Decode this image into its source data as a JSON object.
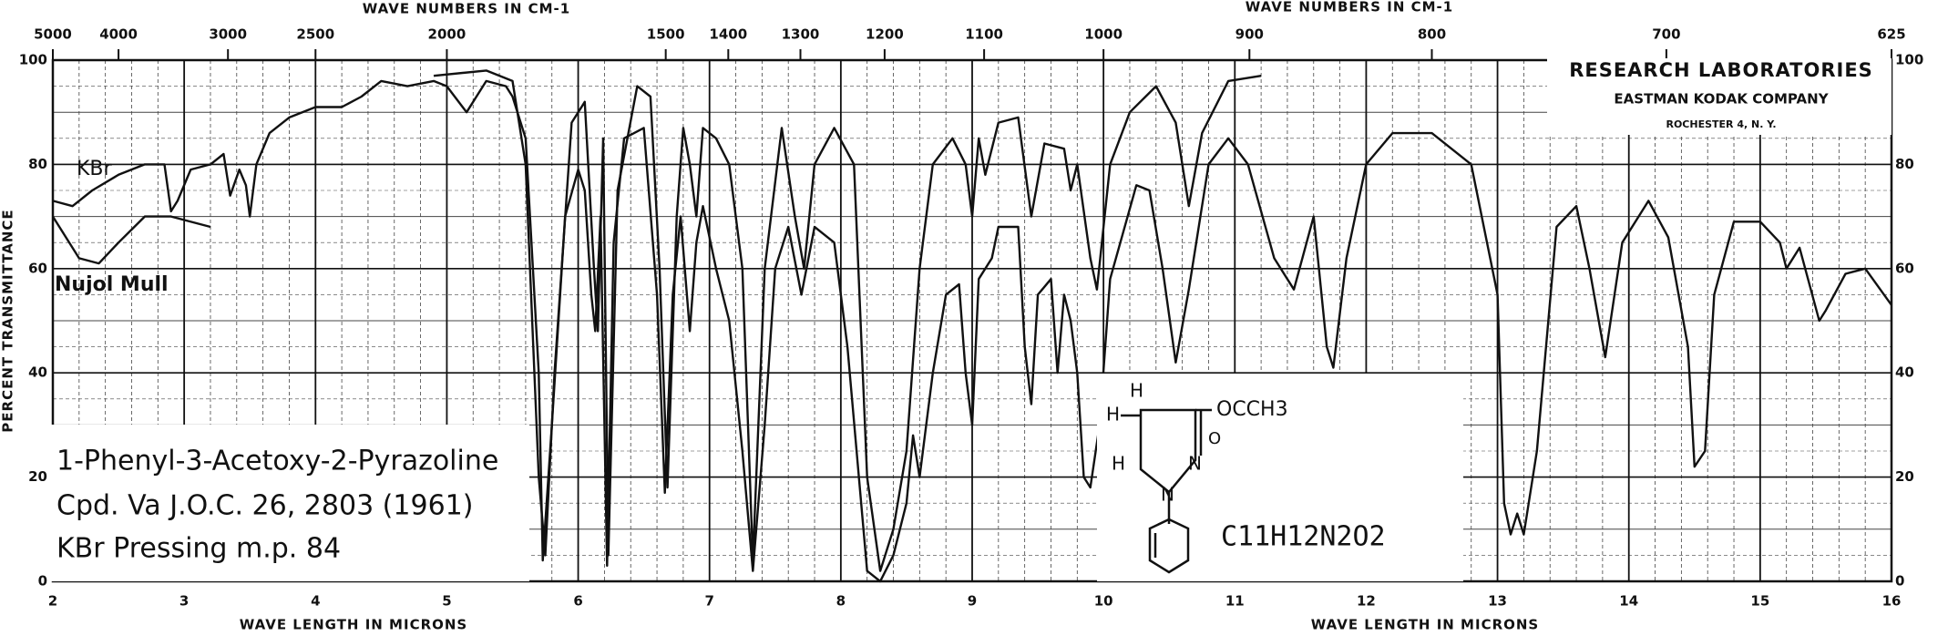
{
  "chart_data": {
    "type": "line",
    "top_axis_label": "WAVE NUMBERS IN CM-1",
    "bottom_axis_label": "WAVE LENGTH IN MICRONS",
    "ylabel": "PERCENT TRANSMITTANCE",
    "xlim": [
      2,
      16
    ],
    "xticks": [
      2,
      3,
      4,
      5,
      6,
      7,
      8,
      9,
      10,
      11,
      12,
      13,
      14,
      15,
      16
    ],
    "x2ticks": [
      5000,
      4000,
      3000,
      2500,
      2000,
      1500,
      1400,
      1300,
      1200,
      1100,
      1000,
      900,
      800,
      700,
      625
    ],
    "x2scale": "reciprocal",
    "ylim": [
      0,
      100
    ],
    "yticks": [
      0,
      20,
      40,
      60,
      80,
      100
    ],
    "grid": true,
    "lab": [
      "RESEARCH LABORATORIES",
      "EASTMAN KODAK COMPANY",
      "ROCHESTER 4, N. Y."
    ],
    "notes": [
      "1-Phenyl-3-Acetoxy-2-Pyrazoline",
      "Cpd. Va J.O.C. 26, 2803 (1961)",
      "KBr Pressing   m.p. 84"
    ],
    "formula": "C11H12N2O2",
    "structure_labels": [
      "H",
      "H",
      "H",
      "N",
      "N",
      "OCCH3",
      "O"
    ],
    "series": [
      {
        "name": "KBr",
        "color": "#111111",
        "x": [
          2.0,
          2.15,
          2.3,
          2.5,
          2.7,
          2.85,
          2.9,
          2.95,
          3.05,
          3.2,
          3.3,
          3.35,
          3.42,
          3.47,
          3.5,
          3.55,
          3.65,
          3.8,
          4.0,
          4.2,
          4.35,
          4.5,
          4.7,
          4.9,
          5.0,
          5.15,
          5.3,
          5.45,
          5.5,
          5.6,
          5.7,
          5.73,
          5.8,
          5.9,
          6.0,
          6.05,
          6.1,
          6.13,
          6.17,
          6.22,
          6.27,
          6.35,
          6.5,
          6.6,
          6.66,
          6.72,
          6.78,
          6.85,
          6.9,
          6.95,
          7.05,
          7.15,
          7.25,
          7.33,
          7.42,
          7.5,
          7.6,
          7.7,
          7.8,
          7.95,
          8.05,
          8.2,
          8.3,
          8.4,
          8.5,
          8.55,
          8.6,
          8.7,
          8.8,
          8.9,
          8.95,
          9.0,
          9.05,
          9.15,
          9.2,
          9.35,
          9.4,
          9.45,
          9.5,
          9.6,
          9.65,
          9.7,
          9.75,
          9.8,
          9.85,
          9.9,
          9.97,
          10.05,
          10.25,
          10.35,
          10.45,
          10.55,
          10.65,
          10.8,
          10.95,
          11.1,
          11.3,
          11.45,
          11.6,
          11.7,
          11.75,
          11.85,
          12.0,
          12.2,
          12.5,
          12.8,
          13.0,
          13.05,
          13.1,
          13.15,
          13.2,
          13.3,
          13.45,
          13.6,
          13.7,
          13.82,
          13.95,
          14.15,
          14.3,
          14.45,
          14.5,
          14.58,
          14.65,
          14.8,
          15.0,
          15.15,
          15.2,
          15.3,
          15.45,
          15.5,
          15.65,
          15.8,
          16.0
        ],
        "values": [
          73,
          72,
          75,
          78,
          80,
          80,
          71,
          73,
          79,
          80,
          82,
          74,
          79,
          76,
          70,
          80,
          86,
          89,
          91,
          91,
          93,
          96,
          95,
          96,
          95,
          90,
          96,
          95,
          93,
          85,
          40,
          4,
          30,
          70,
          79,
          75,
          55,
          48,
          70,
          3,
          65,
          85,
          87,
          55,
          17,
          55,
          70,
          48,
          65,
          72,
          60,
          50,
          25,
          2,
          30,
          60,
          68,
          55,
          68,
          65,
          45,
          2,
          0,
          5,
          15,
          28,
          20,
          40,
          55,
          57,
          40,
          30,
          58,
          62,
          68,
          68,
          45,
          34,
          55,
          58,
          40,
          55,
          50,
          40,
          20,
          18,
          30,
          58,
          76,
          75,
          60,
          42,
          56,
          80,
          85,
          80,
          62,
          56,
          70,
          45,
          41,
          62,
          80,
          86,
          86,
          80,
          55,
          15,
          9,
          13,
          9,
          25,
          68,
          72,
          60,
          43,
          65,
          73,
          66,
          45,
          22,
          25,
          55,
          69,
          69,
          65,
          60,
          64,
          50,
          52,
          59,
          60,
          53
        ]
      },
      {
        "name": null,
        "color": "#111111",
        "x": [
          4.9,
          5.3,
          5.5,
          5.6,
          5.7,
          5.75,
          5.82,
          5.95,
          6.05,
          6.12,
          6.15,
          6.19,
          6.23,
          6.3,
          6.45,
          6.55,
          6.62,
          6.68,
          6.75,
          6.8,
          6.85,
          6.9,
          6.95,
          7.05,
          7.15,
          7.25,
          7.33,
          7.42,
          7.55,
          7.65,
          7.72,
          7.8,
          7.95,
          8.1,
          8.2,
          8.3,
          8.4,
          8.5,
          8.6,
          8.7,
          8.85,
          8.95,
          9.0,
          9.05,
          9.1,
          9.2,
          9.35,
          9.45,
          9.55,
          9.7,
          9.75,
          9.8,
          9.9,
          9.95,
          10.05,
          10.2,
          10.4,
          10.55,
          10.65,
          10.75,
          10.95,
          11.2
        ],
        "values": [
          97,
          98,
          96,
          80,
          20,
          5,
          40,
          88,
          92,
          60,
          48,
          85,
          5,
          75,
          95,
          93,
          60,
          18,
          70,
          87,
          80,
          70,
          87,
          85,
          80,
          60,
          4,
          60,
          87,
          70,
          60,
          80,
          87,
          80,
          20,
          2,
          10,
          25,
          60,
          80,
          85,
          80,
          70,
          85,
          78,
          88,
          89,
          70,
          84,
          83,
          75,
          80,
          62,
          56,
          80,
          90,
          95,
          88,
          72,
          86,
          96,
          97
        ]
      },
      {
        "name": "Nujol Mull",
        "color": "#111111",
        "x": [
          2.0,
          2.1,
          2.2,
          2.35,
          2.5,
          2.7,
          2.9,
          3.2
        ],
        "values": [
          70,
          66,
          62,
          61,
          65,
          70,
          70,
          68
        ]
      }
    ]
  }
}
